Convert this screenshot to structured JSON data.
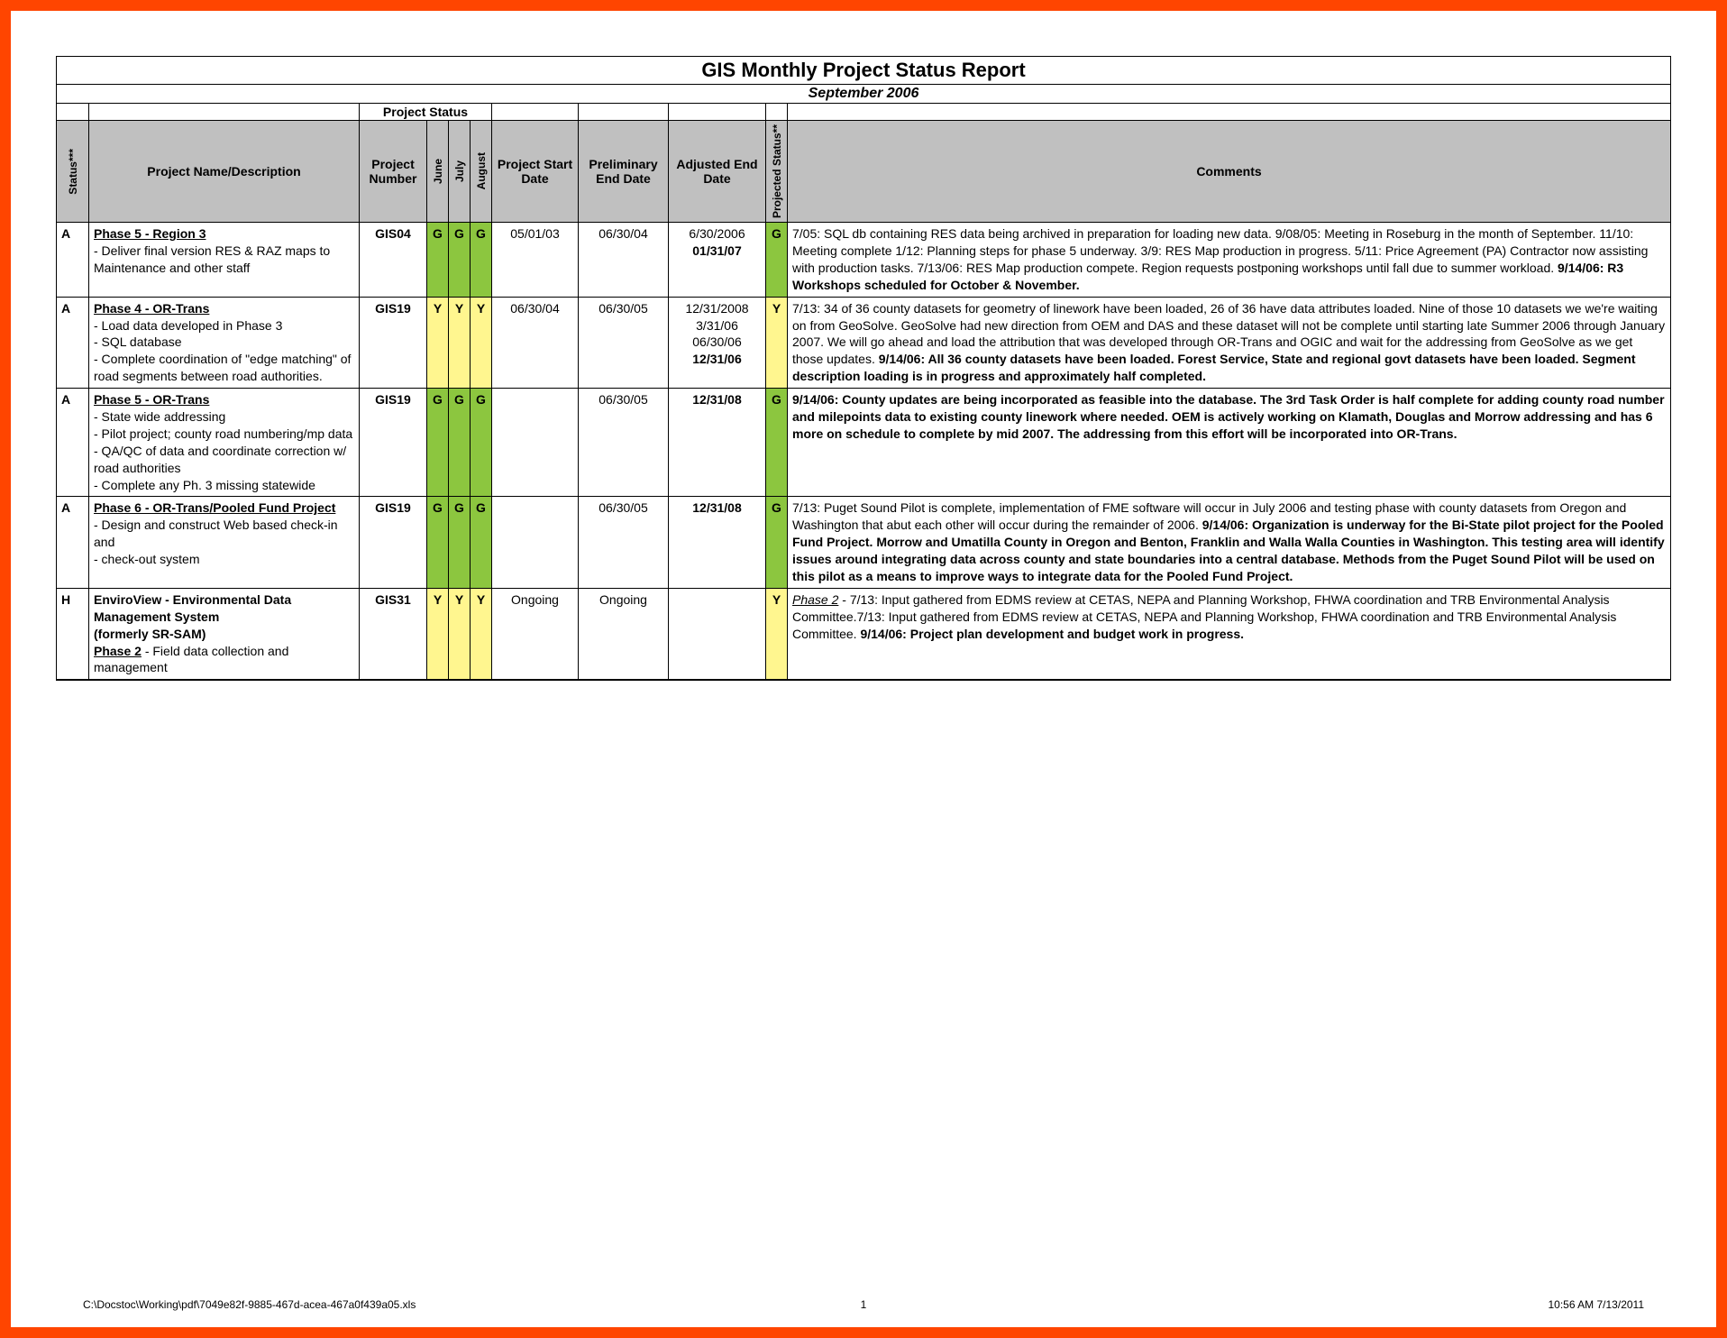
{
  "colors": {
    "frame_border": "#ff4500",
    "header_bg": "#c0c0c0",
    "status_G": "#8cc63f",
    "status_Y": "#fff68f",
    "black": "#000000",
    "white": "#ffffff"
  },
  "report": {
    "title": "GIS Monthly Project Status Report",
    "subtitle": "September 2006",
    "project_status_label": "Project Status"
  },
  "headers": {
    "status": "Status***",
    "name": "Project Name/Description",
    "number": "Project Number",
    "jun": "June",
    "jul": "July",
    "aug": "August",
    "start": "Project Start Date",
    "prelim": "Preliminary End Date",
    "adj": "Adjusted End Date",
    "proj_status": "Projected Status**",
    "comments": "Comments"
  },
  "rows": [
    {
      "status": "A",
      "title": "Phase 5 - Region 3",
      "desc": " - Deliver final version RES & RAZ maps to Maintenance and other staff",
      "number": "GIS04",
      "jun": "G",
      "jul": "G",
      "aug": "G",
      "start": "05/01/03",
      "prelim": "06/30/04",
      "adj_html": "6/30/2006<br><b>01/31/07</b>",
      "proj": "G",
      "comments_html": "7/05: SQL db containing RES data being archived in preparation for loading new data.  9/08/05:  Meeting in Roseburg in the month of September.  11/10: Meeting complete 1/12: Planning steps for phase 5 underway.  3/9: RES Map production in progress. 5/11: Price Agreement (PA) Contractor now assisting with production tasks.  7/13/06: RES Map production compete. Region requests postponing workshops until fall due to summer workload. <b>9/14/06: R3 Workshops scheduled for October & November.</b>"
    },
    {
      "status": "A",
      "title": "Phase 4 - OR-Trans",
      "desc": " - Load data developed in Phase 3<br> - SQL database<br> -  Complete coordination of \"edge matching\" of road segments between road authorities.",
      "number": "GIS19",
      "jun": "Y",
      "jul": "Y",
      "aug": "Y",
      "start": "06/30/04",
      "prelim": "06/30/05",
      "adj_html": "12/31/2008<br>3/31/06<br>06/30/06<br><b>12/31/06</b>",
      "proj": "Y",
      "comments_html": "7/13: 34 of 36 county datasets for geometry of linework have been loaded, 26 of 36 have data attributes loaded.  Nine of those 10 datasets we we're waiting on from GeoSolve.  GeoSolve had new direction from OEM and DAS and these dataset will not be complete until starting late Summer 2006 through January 2007.  We will go ahead and load the attribution that was developed through OR-Trans and OGIC and wait for the addressing from GeoSolve as we get those updates.  <b>9/14/06: All 36 county datasets have been loaded.  Forest Service, State and regional govt datasets have been loaded.  Segment description loading is in progress and approximately half completed.</b>"
    },
    {
      "status": "A",
      "title": " Phase 5 - OR-Trans",
      "desc": " - State wide addressing<br> - Pilot project; county road numbering/mp data<br> - QA/QC of data and coordinate correction w/ road authorities<br> - Complete any Ph. 3 missing statewide",
      "number": "GIS19",
      "jun": "G",
      "jul": "G",
      "aug": "G",
      "start": "",
      "prelim": "06/30/05",
      "adj_html": "<b>12/31/08</b>",
      "proj": "G",
      "comments_html": "<b>9/14/06: County updates are being incorporated as feasible into the database.  The 3rd Task Order is half complete for adding county road number and milepoints data to existing county linework where needed.  OEM is actively working on Klamath, Douglas and Morrow addressing and has 6 more on schedule to complete by mid 2007.  The addressing from this effort will be incorporated into OR-Trans.</b>"
    },
    {
      "status": "A",
      "title": "Phase 6 - OR-Trans/Pooled Fund Project",
      "desc": " - Design and construct Web based check-in and<br> - check-out system",
      "number": "GIS19",
      "jun": "G",
      "jul": "G",
      "aug": "G",
      "start": "",
      "prelim": "06/30/05",
      "adj_html": "<b>12/31/08</b>",
      "proj": "G",
      "comments_html": "7/13: Puget Sound Pilot is complete, implementation of FME software will occur in July 2006 and  testing phase with county datasets from Oregon and Washington that abut each other will occur during the remainder of 2006. <b>9/14/06: Organization is underway for the Bi-State pilot project for the Pooled Fund Project.  Morrow and Umatilla County in Oregon and Benton, Franklin and Walla Walla Counties in Washington.  This testing area will identify issues around integrating data across county and state boundaries into a central database.  Methods from the Puget Sound Pilot will be used on this pilot as a means to improve ways to integrate data for the Pooled Fund Project.</b>"
    },
    {
      "status": "H",
      "title_html": "<b>EnviroView - Environmental Data Management System<br>(formerly SR-SAM)</b><br><span class=\"desc-title\">Phase 2</span> - Field data collection and management",
      "desc": "",
      "number": "GIS31",
      "jun": "Y",
      "jul": "Y",
      "aug": "Y",
      "start": "Ongoing",
      "prelim": "Ongoing",
      "adj_html": "",
      "proj": "Y",
      "comments_html": "<span style=\"text-decoration:underline;font-style:italic\">Phase 2</span> - 7/13: Input gathered from EDMS review at CETAS, NEPA and Planning Workshop, FHWA coordination and TRB Environmental Analysis Committee.7/13: Input gathered from EDMS review at CETAS, NEPA and Planning Workshop, FHWA coordination and TRB Environmental Analysis Committee. <b>9/14/06: Project plan development and budget work in progress.</b>"
    }
  ],
  "footer": {
    "path": "C:\\Docstoc\\Working\\pdf\\7049e82f-9885-467d-acea-467a0f439a05.xls",
    "page": "1",
    "timestamp": "10:56 AM   7/13/2011"
  }
}
